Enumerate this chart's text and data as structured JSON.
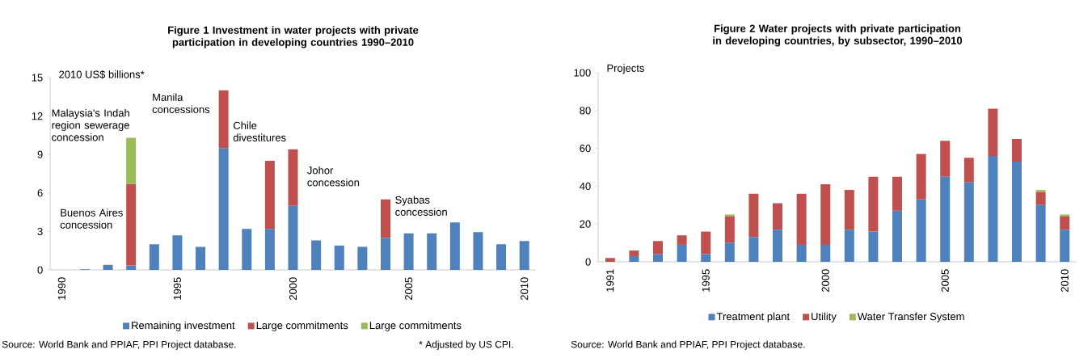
{
  "chart_data": [
    {
      "type": "bar",
      "stacked": true,
      "title": "Figure 1 Investment in water projects with private participation in developing countries 1990–2010",
      "ylabel": "2010 US$ billions*",
      "categories": [
        "1990",
        null,
        null,
        null,
        null,
        "1995",
        null,
        null,
        null,
        null,
        "2000",
        null,
        null,
        null,
        null,
        "2005",
        null,
        null,
        null,
        null,
        "2010"
      ],
      "series": [
        {
          "name": "Remaining investment",
          "color": "#4f81bd",
          "values": [
            0,
            0.05,
            0.4,
            0.35,
            2.0,
            2.7,
            1.8,
            9.5,
            3.2,
            3.2,
            5.0,
            2.3,
            1.9,
            1.8,
            2.5,
            2.85,
            2.85,
            3.7,
            2.95,
            2.0,
            2.25
          ]
        },
        {
          "name": "Large commitments",
          "color": "#c0504d",
          "values": [
            null,
            null,
            null,
            6.35,
            null,
            null,
            null,
            4.5,
            null,
            5.3,
            4.4,
            null,
            null,
            null,
            3.0,
            null,
            null,
            null,
            null,
            null,
            null
          ]
        },
        {
          "name": "Large commitments",
          "color": "#9bbb59",
          "values": [
            null,
            null,
            null,
            3.6,
            null,
            null,
            null,
            null,
            null,
            null,
            null,
            null,
            null,
            null,
            null,
            null,
            null,
            null,
            null,
            null,
            null
          ]
        }
      ],
      "ylim": [
        0,
        15
      ],
      "yticks": [
        0,
        3,
        6,
        9,
        12,
        15
      ],
      "grid": false,
      "legend": "bottom",
      "annotations": [
        "Buenos Aires concession",
        "Malaysia's Indah region sewerage concession",
        "Manila concessions",
        "Chile divestitures",
        "Johor concession",
        "Syabas concession",
        "Source:  World Bank and PPIAF, PPI Project database.",
        "* Adjusted by US CPI."
      ]
    },
    {
      "type": "bar",
      "stacked": true,
      "title": "Figure 2 Water projects with private participation in developing countries, by subsector, 1990–2010",
      "ylabel": "Projects",
      "categories": [
        "1991",
        null,
        null,
        null,
        "1995",
        null,
        null,
        null,
        null,
        "2000",
        null,
        null,
        null,
        null,
        "2005",
        null,
        null,
        null,
        null,
        "2010"
      ],
      "series": [
        {
          "name": "Treatment plant",
          "color": "#4f81bd",
          "values": [
            0,
            3,
            4,
            9,
            4,
            10,
            13,
            17,
            9,
            9,
            17,
            16,
            27,
            33,
            45,
            42,
            56,
            53,
            30,
            17
          ]
        },
        {
          "name": "Utility",
          "color": "#c0504d",
          "values": [
            2,
            3,
            7,
            5,
            12,
            14,
            23,
            14,
            27,
            32,
            21,
            29,
            18,
            24,
            19,
            13,
            25,
            12,
            7,
            7
          ]
        },
        {
          "name": "Water Transfer System",
          "color": "#9bbb59",
          "values": [
            null,
            null,
            null,
            null,
            null,
            1,
            null,
            null,
            null,
            null,
            null,
            null,
            null,
            null,
            null,
            null,
            null,
            null,
            1,
            1
          ]
        }
      ],
      "ylim": [
        0,
        100
      ],
      "yticks": [
        0,
        20,
        40,
        60,
        80,
        100
      ],
      "grid": false,
      "legend": "bottom",
      "annotations": [
        "Source:  World Bank and PPIAF, PPI Project database."
      ]
    }
  ]
}
